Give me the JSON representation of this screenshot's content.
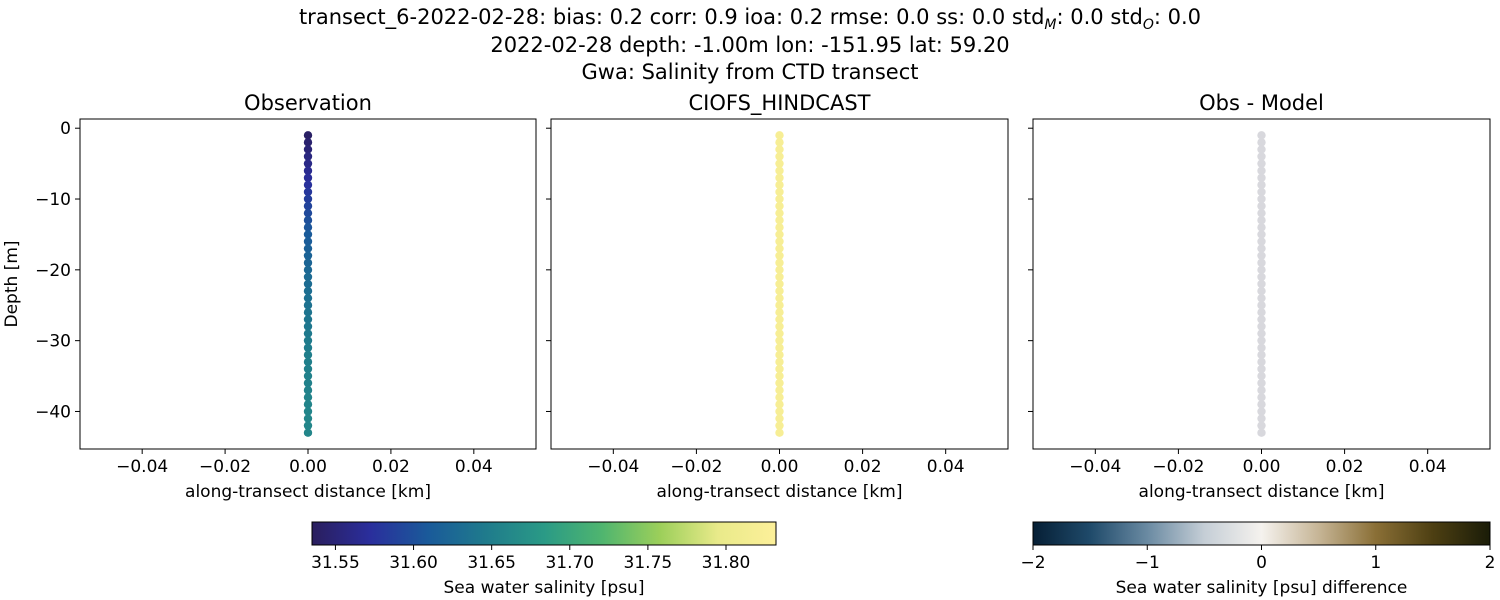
{
  "titles": {
    "line1": "transect_6-2022-02-28: bias: 0.2  corr: 0.9  ioa: 0.2  rmse: 0.0  ss: 0.0  std",
    "line1_tail": "",
    "line2": "2022-02-28 depth: -1.00m lon: -151.95 lat: 59.20",
    "line3": "Gwa: Salinity from CTD transect"
  },
  "stats_tail": {
    "stdM_label": "std",
    "stdM_sub": "M",
    "stdM_val": ": 0.0",
    "stdO_label": "std",
    "stdO_sub": "O",
    "stdO_val": ": 0.0"
  },
  "chart_data": [
    {
      "type": "scatter",
      "title": "Observation",
      "xlabel": "along-transect distance [km]",
      "ylabel": "Depth [m]",
      "xlim": [
        -0.055,
        0.055
      ],
      "ylim": [
        -45.3,
        1.3
      ],
      "xticks": [
        -0.04,
        -0.02,
        0.0,
        0.02,
        0.04
      ],
      "xtick_labels": [
        "−0.04",
        "−0.02",
        "0.00",
        "0.02",
        "0.04"
      ],
      "yticks": [
        0,
        -10,
        -20,
        -30,
        -40
      ],
      "ytick_labels": [
        "0",
        "−10",
        "−20",
        "−30",
        "−40"
      ],
      "x": 0.0,
      "depths": [
        -1,
        -2,
        -3,
        -4,
        -5,
        -6,
        -7,
        -8,
        -9,
        -10,
        -11,
        -12,
        -13,
        -14,
        -15,
        -16,
        -17,
        -18,
        -19,
        -20,
        -21,
        -22,
        -23,
        -24,
        -25,
        -26,
        -27,
        -28,
        -29,
        -30,
        -31,
        -32,
        -33,
        -34,
        -35,
        -36,
        -37,
        -38,
        -39,
        -40,
        -41,
        -42,
        -43
      ],
      "values": [
        31.54,
        31.545,
        31.55,
        31.555,
        31.56,
        31.565,
        31.57,
        31.575,
        31.58,
        31.585,
        31.59,
        31.595,
        31.6,
        31.605,
        31.61,
        31.613,
        31.616,
        31.619,
        31.622,
        31.625,
        31.628,
        31.63,
        31.632,
        31.634,
        31.636,
        31.638,
        31.64,
        31.642,
        31.644,
        31.646,
        31.648,
        31.65,
        31.651,
        31.652,
        31.653,
        31.654,
        31.655,
        31.656,
        31.657,
        31.658,
        31.659,
        31.66,
        31.66
      ],
      "colormap": "haline"
    },
    {
      "type": "scatter",
      "title": "CIOFS_HINDCAST",
      "xlabel": "along-transect distance [km]",
      "xlim": [
        -0.055,
        0.055
      ],
      "ylim": [
        -45.3,
        1.3
      ],
      "xticks": [
        -0.04,
        -0.02,
        0.0,
        0.02,
        0.04
      ],
      "xtick_labels": [
        "−0.04",
        "−0.02",
        "0.00",
        "0.02",
        "0.04"
      ],
      "x": 0.0,
      "depths": [
        -1,
        -2,
        -3,
        -4,
        -5,
        -6,
        -7,
        -8,
        -9,
        -10,
        -11,
        -12,
        -13,
        -14,
        -15,
        -16,
        -17,
        -18,
        -19,
        -20,
        -21,
        -22,
        -23,
        -24,
        -25,
        -26,
        -27,
        -28,
        -29,
        -30,
        -31,
        -32,
        -33,
        -34,
        -35,
        -36,
        -37,
        -38,
        -39,
        -40,
        -41,
        -42,
        -43
      ],
      "values": [
        31.82,
        31.82,
        31.82,
        31.82,
        31.82,
        31.82,
        31.82,
        31.82,
        31.82,
        31.82,
        31.82,
        31.82,
        31.82,
        31.82,
        31.82,
        31.82,
        31.82,
        31.82,
        31.82,
        31.82,
        31.82,
        31.82,
        31.82,
        31.82,
        31.82,
        31.82,
        31.82,
        31.82,
        31.82,
        31.82,
        31.82,
        31.82,
        31.82,
        31.82,
        31.82,
        31.82,
        31.82,
        31.82,
        31.82,
        31.82,
        31.82,
        31.82,
        31.82
      ],
      "colormap": "haline"
    },
    {
      "type": "scatter",
      "title": "Obs - Model",
      "xlabel": "along-transect distance [km]",
      "xlim": [
        -0.055,
        0.055
      ],
      "ylim": [
        -45.3,
        1.3
      ],
      "xticks": [
        -0.04,
        -0.02,
        0.0,
        0.02,
        0.04
      ],
      "xtick_labels": [
        "−0.04",
        "−0.02",
        "0.00",
        "0.02",
        "0.04"
      ],
      "x": 0.0,
      "depths": [
        -1,
        -2,
        -3,
        -4,
        -5,
        -6,
        -7,
        -8,
        -9,
        -10,
        -11,
        -12,
        -13,
        -14,
        -15,
        -16,
        -17,
        -18,
        -19,
        -20,
        -21,
        -22,
        -23,
        -24,
        -25,
        -26,
        -27,
        -28,
        -29,
        -30,
        -31,
        -32,
        -33,
        -34,
        -35,
        -36,
        -37,
        -38,
        -39,
        -40,
        -41,
        -42,
        -43
      ],
      "values": [
        -0.2,
        -0.2,
        -0.2,
        -0.2,
        -0.2,
        -0.2,
        -0.2,
        -0.2,
        -0.2,
        -0.2,
        -0.2,
        -0.2,
        -0.2,
        -0.2,
        -0.2,
        -0.2,
        -0.2,
        -0.2,
        -0.2,
        -0.2,
        -0.2,
        -0.2,
        -0.2,
        -0.2,
        -0.2,
        -0.2,
        -0.2,
        -0.2,
        -0.2,
        -0.2,
        -0.2,
        -0.2,
        -0.2,
        -0.2,
        -0.2,
        -0.2,
        -0.2,
        -0.2,
        -0.2,
        -0.2,
        -0.2,
        -0.2,
        -0.2
      ],
      "colormap": "diff"
    }
  ],
  "colorbars": [
    {
      "label": "Sea water salinity [psu]",
      "min": 31.535,
      "max": 31.832,
      "ticks": [
        31.55,
        31.6,
        31.65,
        31.7,
        31.75,
        31.8
      ],
      "tick_labels": [
        "31.55",
        "31.60",
        "31.65",
        "31.70",
        "31.75",
        "31.80"
      ],
      "stops": [
        "#2a1e5d",
        "#2a2e9c",
        "#1a5a9a",
        "#1f7b8c",
        "#2a9a86",
        "#4fb56f",
        "#9ccf5a",
        "#e9ea8a",
        "#fdf09a"
      ]
    },
    {
      "label": "Sea water salinity [psu] difference",
      "min": -2,
      "max": 2,
      "ticks": [
        -2,
        -1,
        0,
        1,
        2
      ],
      "tick_labels": [
        "−2",
        "−1",
        "0",
        "1",
        "2"
      ],
      "stops": [
        "#061f35",
        "#1f4a6a",
        "#6a8aa2",
        "#c5ced6",
        "#f5f2ee",
        "#c6b596",
        "#8a6f36",
        "#4d3f12",
        "#1a1c08"
      ]
    }
  ]
}
